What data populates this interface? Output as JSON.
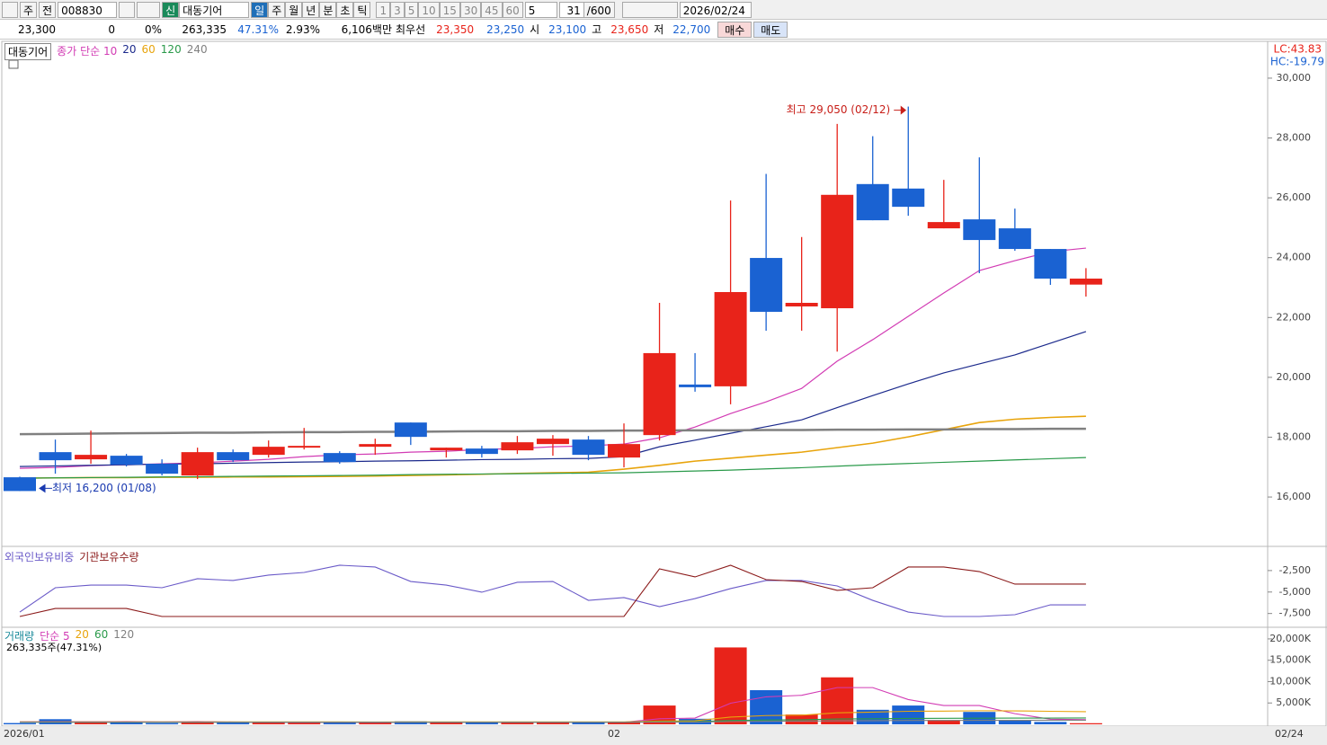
{
  "toolbar": {
    "market": "주",
    "mode": "전",
    "code": "008830",
    "new_badge": "신",
    "stock_name": "대동기어",
    "periods": [
      "일",
      "주",
      "월",
      "년",
      "분",
      "초",
      "틱"
    ],
    "minutes": [
      "1",
      "3",
      "5",
      "10",
      "15",
      "30",
      "45",
      "60"
    ],
    "step": "5",
    "count": "31",
    "count_max": "/600",
    "date": "2026/02/24"
  },
  "quote": {
    "price": "23,300",
    "change": "0",
    "change_rate": "0%",
    "volume": "263,335",
    "volume_ratio": "47.31%",
    "turnover": "2.93%",
    "amount": "6,106백만",
    "best_label": "최우선",
    "best_ask": "23,350",
    "best_bid": "23,250",
    "open_label": "시",
    "open": "23,100",
    "high_label": "고",
    "high": "23,650",
    "low_label": "저",
    "low": "22,700",
    "buy": "매수",
    "sell": "매도"
  },
  "chart_data": [
    {
      "type": "candlestick",
      "title": "대동기어",
      "lc_label": "LC:43.83",
      "hc_label": "HC:-19.79",
      "up_color": "#e8231a",
      "down_color": "#1a62d2",
      "categories": [
        "2026/01",
        null,
        null,
        null,
        null,
        null,
        null,
        null,
        null,
        null,
        null,
        null,
        null,
        null,
        null,
        null,
        null,
        "02",
        null,
        null,
        null,
        null,
        null,
        null,
        null,
        null,
        null,
        null,
        null,
        null,
        null
      ],
      "cursor_label": "02/24",
      "series": [
        {
          "name": "대동기어",
          "open": [
            16660,
            17500,
            17260,
            17380,
            17110,
            16720,
            17500,
            17410,
            17680,
            17470,
            17680,
            18490,
            17560,
            17620,
            17560,
            17770,
            17920,
            17320,
            18070,
            19760,
            19700,
            23990,
            22370,
            22310,
            26460,
            26310,
            24980,
            25280,
            24980,
            24290,
            23100
          ],
          "high": [
            16680,
            17920,
            18220,
            17440,
            17260,
            17650,
            17590,
            17890,
            18310,
            17530,
            17950,
            18490,
            17650,
            17710,
            18040,
            18070,
            18040,
            18460,
            22490,
            20810,
            25910,
            26800,
            24690,
            28470,
            28060,
            29050,
            26600,
            27350,
            25640,
            24290,
            23650
          ],
          "low": [
            16200,
            16780,
            17110,
            17020,
            16720,
            16600,
            17170,
            17320,
            17590,
            17110,
            17410,
            17740,
            17320,
            17320,
            17440,
            17380,
            17230,
            16990,
            17890,
            19520,
            19100,
            21560,
            21560,
            20860,
            25250,
            25400,
            24980,
            23480,
            24230,
            23090,
            22700
          ],
          "close": [
            16200,
            17230,
            17410,
            17080,
            16780,
            17500,
            17230,
            17680,
            17710,
            17170,
            17770,
            18010,
            17650,
            17440,
            17830,
            17950,
            17410,
            17770,
            20810,
            19670,
            22850,
            22190,
            22490,
            26100,
            25250,
            25700,
            25190,
            24590,
            24290,
            23300,
            23300
          ]
        }
      ],
      "overlays": [
        {
          "name": "종가 단순 10",
          "color": "#d23cb4",
          "values": [
            16960,
            16990,
            17050,
            17080,
            17110,
            17140,
            17200,
            17260,
            17350,
            17410,
            17440,
            17500,
            17530,
            17590,
            17620,
            17680,
            17710,
            17770,
            17980,
            18340,
            18790,
            19180,
            19630,
            20540,
            21260,
            22040,
            22820,
            23570,
            23900,
            24200,
            24320
          ]
        },
        {
          "name": "20",
          "color": "#1c2a8c",
          "values": [
            17020,
            17040,
            17060,
            17080,
            17100,
            17110,
            17130,
            17150,
            17170,
            17180,
            17200,
            17210,
            17230,
            17250,
            17260,
            17280,
            17290,
            17350,
            17680,
            17900,
            18130,
            18350,
            18580,
            18990,
            19390,
            19780,
            20150,
            20450,
            20750,
            21140,
            21530
          ]
        },
        {
          "name": "60",
          "color": "#e8a40c",
          "values": [
            16630,
            16640,
            16650,
            16650,
            16660,
            16660,
            16670,
            16670,
            16680,
            16690,
            16700,
            16720,
            16740,
            16760,
            16790,
            16810,
            16830,
            16930,
            17060,
            17200,
            17300,
            17400,
            17500,
            17650,
            17800,
            18010,
            18250,
            18490,
            18600,
            18660,
            18700
          ]
        },
        {
          "name": "120",
          "color": "#2a9a4a",
          "values": [
            16630,
            16640,
            16650,
            16660,
            16670,
            16680,
            16690,
            16700,
            16710,
            16720,
            16730,
            16750,
            16760,
            16770,
            16780,
            16790,
            16800,
            16810,
            16840,
            16870,
            16900,
            16940,
            16980,
            17030,
            17080,
            17120,
            17160,
            17200,
            17240,
            17280,
            17320
          ]
        },
        {
          "name": "240",
          "color": "#808080",
          "values": [
            18100,
            18110,
            18120,
            18130,
            18140,
            18150,
            18150,
            18160,
            18170,
            18170,
            18180,
            18180,
            18190,
            18200,
            18200,
            18210,
            18210,
            18220,
            18220,
            18230,
            18230,
            18240,
            18240,
            18250,
            18250,
            18260,
            18260,
            18270,
            18270,
            18280,
            18280
          ]
        }
      ],
      "annotations": {
        "high": "최고 29,050 (02/12)",
        "low": "최저 16,200 (01/08)"
      },
      "ylim": [
        14380,
        31170
      ],
      "yticks": [
        {
          "value": 16000,
          "label": "16,000"
        },
        {
          "value": 18000,
          "label": "18,000"
        },
        {
          "value": 20000,
          "label": "20,000"
        },
        {
          "value": 22000,
          "label": "22,000"
        },
        {
          "value": 24000,
          "label": "24,000"
        },
        {
          "value": 26000,
          "label": "26,000"
        },
        {
          "value": 28000,
          "label": "28,000"
        },
        {
          "value": 30000,
          "label": "30,000"
        }
      ]
    },
    {
      "type": "line",
      "series": [
        {
          "name": "외국인보유비중",
          "color": "#6a5ac8",
          "values": [
            -7330,
            -4500,
            -4190,
            -4190,
            -4500,
            -3450,
            -3660,
            -3030,
            -2720,
            -1880,
            -2090,
            -3770,
            -4190,
            -5020,
            -3870,
            -3770,
            -5970,
            -5650,
            -6700,
            -5760,
            -4600,
            -3660,
            -3660,
            -4290,
            -5970,
            -7330,
            -7850,
            -7850,
            -7640,
            -6490,
            -6490
          ]
        },
        {
          "name": "기관보유수량",
          "color": "#8b1a1a",
          "values": [
            -7850,
            -6910,
            -6910,
            -6910,
            -7850,
            -7850,
            -7850,
            -7850,
            -7850,
            -7850,
            -7850,
            -7850,
            -7850,
            -7850,
            -7850,
            -7850,
            -7850,
            -7850,
            -2300,
            -3240,
            -1880,
            -3560,
            -3770,
            -4810,
            -4500,
            -2090,
            -2090,
            -2620,
            -4080,
            -4080,
            -4080
          ]
        }
      ],
      "ylim": [
        -9000,
        0
      ],
      "yticks": [
        {
          "value": -2500,
          "label": "-2,500"
        },
        {
          "value": -5000,
          "label": "-5,000"
        },
        {
          "value": -7500,
          "label": "-7,500"
        }
      ]
    },
    {
      "type": "bar",
      "title": "거래량",
      "note": "263,335주(47.31%)",
      "up_color": "#e8231a",
      "down_color": "#1a62d2",
      "values": [
        300,
        1200,
        600,
        500,
        300,
        700,
        400,
        500,
        400,
        400,
        500,
        700,
        500,
        500,
        400,
        500,
        600,
        500,
        4400,
        1300,
        18000,
        8000,
        2300,
        11000,
        3400,
        4400,
        1000,
        2900,
        1000,
        560,
        263
      ],
      "overlays": [
        {
          "name": "단순 5",
          "color": "#d23cb4",
          "values": [
            600,
            620,
            620,
            640,
            580,
            660,
            540,
            480,
            460,
            480,
            440,
            500,
            500,
            520,
            520,
            520,
            500,
            500,
            1300,
            1460,
            4940,
            6440,
            6800,
            8600,
            8600,
            5800,
            4400,
            4400,
            2500,
            1200,
            1100
          ]
        },
        {
          "name": "20",
          "color": "#e8a40c",
          "values": [
            560,
            570,
            580,
            580,
            570,
            580,
            570,
            560,
            560,
            560,
            550,
            560,
            560,
            570,
            560,
            560,
            560,
            560,
            760,
            820,
            1700,
            2050,
            2150,
            2700,
            2850,
            3050,
            3080,
            3180,
            3150,
            3050,
            2950
          ]
        },
        {
          "name": "60",
          "color": "#2a9a4a",
          "values": [
            520,
            520,
            520,
            520,
            520,
            520,
            520,
            520,
            520,
            520,
            520,
            520,
            520,
            520,
            520,
            520,
            520,
            520,
            590,
            610,
            900,
            1020,
            1060,
            1240,
            1300,
            1380,
            1400,
            1440,
            1460,
            1470,
            1480
          ]
        },
        {
          "name": "120",
          "color": "#808080",
          "values": [
            480,
            480,
            480,
            480,
            480,
            480,
            480,
            480,
            480,
            480,
            480,
            480,
            480,
            480,
            480,
            480,
            480,
            480,
            510,
            520,
            660,
            720,
            740,
            830,
            860,
            900,
            910,
            930,
            940,
            950,
            950
          ]
        }
      ],
      "ylim": [
        0,
        22300
      ],
      "yticks": [
        {
          "value": 5000,
          "label": "5,000K"
        },
        {
          "value": 10000,
          "label": "10,000K"
        },
        {
          "value": 15000,
          "label": "15,000K"
        },
        {
          "value": 20000,
          "label": "20,000K"
        }
      ]
    }
  ]
}
